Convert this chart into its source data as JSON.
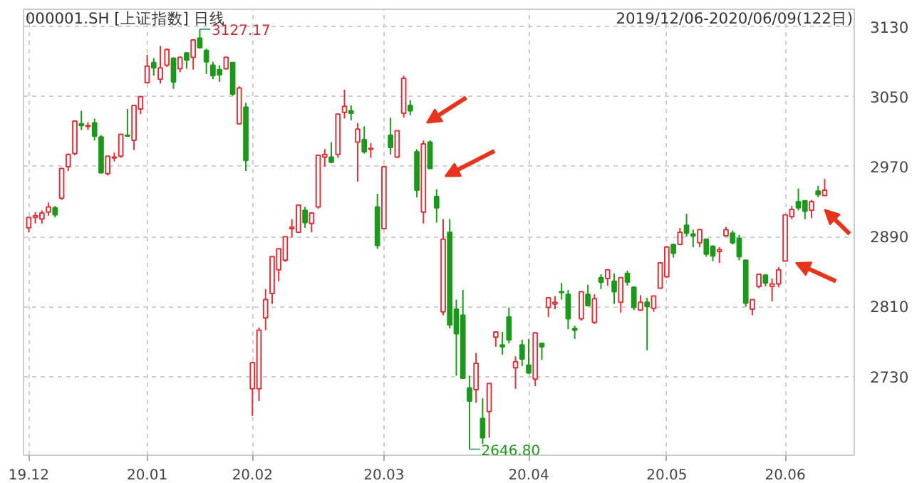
{
  "chart_data": {
    "type": "candlestick",
    "title": "000001.SH [上证指数] 日线",
    "subtitle": "2019/12/06-2020/06/09(122日)",
    "categories": [
      "19.12",
      null,
      null,
      null,
      null,
      null,
      null,
      null,
      null,
      null,
      null,
      null,
      null,
      null,
      null,
      null,
      null,
      null,
      "20.01",
      null,
      null,
      null,
      null,
      null,
      null,
      null,
      null,
      null,
      null,
      null,
      null,
      null,
      null,
      null,
      "20.02",
      null,
      null,
      null,
      null,
      null,
      null,
      null,
      null,
      null,
      null,
      null,
      null,
      null,
      null,
      null,
      null,
      null,
      null,
      null,
      "20.03",
      null,
      null,
      null,
      null,
      null,
      null,
      null,
      null,
      null,
      null,
      null,
      null,
      null,
      null,
      null,
      null,
      null,
      null,
      null,
      null,
      null,
      "20.04",
      null,
      null,
      null,
      null,
      null,
      null,
      null,
      null,
      null,
      null,
      null,
      null,
      null,
      null,
      null,
      null,
      null,
      null,
      null,
      null,
      "20.05",
      null,
      null,
      null,
      null,
      null,
      null,
      null,
      null,
      null,
      null,
      null,
      null,
      null,
      null,
      null,
      null,
      null,
      "20.06",
      null,
      null,
      null,
      null,
      null,
      null
    ],
    "ohlc": [
      [
        2900,
        2913,
        2895,
        2912
      ],
      [
        2912,
        2918,
        2905,
        2914
      ],
      [
        2910,
        2920,
        2905,
        2917
      ],
      [
        2918,
        2929,
        2914,
        2924
      ],
      [
        2923,
        2925,
        2912,
        2915
      ],
      [
        2934,
        2968,
        2932,
        2968
      ],
      [
        2970,
        2985,
        2965,
        2984
      ],
      [
        2985,
        3023,
        2983,
        3022
      ],
      [
        3019,
        3034,
        3012,
        3017
      ],
      [
        3016,
        3021,
        3012,
        3017
      ],
      [
        3020,
        3025,
        3000,
        3005
      ],
      [
        3004,
        3006,
        2962,
        2963
      ],
      [
        2962,
        2982,
        2960,
        2982
      ],
      [
        2980,
        2986,
        2976,
        2981
      ],
      [
        2982,
        3007,
        2980,
        3007
      ],
      [
        3006,
        3036,
        3005,
        3005
      ],
      [
        3000,
        3040,
        2989,
        3040
      ],
      [
        3036,
        3051,
        3030,
        3050
      ],
      [
        3066,
        3098,
        3066,
        3085
      ],
      [
        3089,
        3094,
        3074,
        3083
      ],
      [
        3070,
        3108,
        3065,
        3083
      ],
      [
        3086,
        3105,
        3084,
        3104
      ],
      [
        3094,
        3095,
        3059,
        3067
      ],
      [
        3082,
        3096,
        3078,
        3095
      ],
      [
        3100,
        3101,
        3082,
        3092
      ],
      [
        3095,
        3115,
        3081,
        3115
      ],
      [
        3117,
        3127.17,
        3105,
        3106
      ],
      [
        3103,
        3105,
        3076,
        3090
      ],
      [
        3086,
        3090,
        3070,
        3074
      ],
      [
        3081,
        3086,
        3067,
        3075
      ],
      [
        3082,
        3096,
        3081,
        3095
      ],
      [
        3089,
        3089,
        3051,
        3053
      ],
      [
        3019,
        3062,
        3018,
        3060
      ],
      [
        3038,
        3043,
        2965,
        2977
      ],
      [
        2716,
        2747,
        2685,
        2746
      ],
      [
        2716,
        2786,
        2702,
        2783
      ],
      [
        2797,
        2830,
        2783,
        2818
      ],
      [
        2825,
        2867,
        2813,
        2867
      ],
      [
        2852,
        2876,
        2839,
        2876
      ],
      [
        2863,
        2890,
        2861,
        2890
      ],
      [
        2899,
        2910,
        2889,
        2901
      ],
      [
        2895,
        2926,
        2895,
        2926
      ],
      [
        2920,
        2924,
        2900,
        2906
      ],
      [
        2905,
        2918,
        2895,
        2917
      ],
      [
        2924,
        2983,
        2922,
        2983
      ],
      [
        2981,
        2990,
        2970,
        2984
      ],
      [
        2981,
        2998,
        2974,
        2975
      ],
      [
        2984,
        3031,
        2980,
        3030
      ],
      [
        3032,
        3058,
        3025,
        3039
      ],
      [
        3034,
        3040,
        3023,
        3031
      ],
      [
        2998,
        3020,
        2953,
        3013
      ],
      [
        3001,
        3016,
        2985,
        2987
      ],
      [
        2990,
        2997,
        2980,
        2991
      ],
      [
        2924,
        2939,
        2876,
        2880
      ],
      [
        2899,
        2970,
        2899,
        2970
      ],
      [
        3006,
        3026,
        2984,
        2992
      ],
      [
        2981,
        3011,
        2980,
        3011
      ],
      [
        3031,
        3074,
        3026,
        3071
      ],
      [
        3040,
        3046,
        3029,
        3034
      ],
      [
        2987,
        2990,
        2935,
        2943
      ],
      [
        2918,
        3000,
        2905,
        2996
      ],
      [
        2998,
        3000,
        2968,
        2968
      ],
      [
        2936,
        2944,
        2906,
        2923
      ],
      [
        2804,
        2910,
        2800,
        2887
      ],
      [
        2895,
        2910,
        2785,
        2789
      ],
      [
        2807,
        2818,
        2731,
        2779
      ],
      [
        2800,
        2829,
        2728,
        2728
      ],
      [
        2717,
        2731,
        2646.8,
        2702
      ],
      [
        2715,
        2757,
        2700,
        2745
      ],
      [
        2682,
        2705,
        2653,
        2660
      ],
      [
        2690,
        2722,
        2660,
        2722
      ],
      [
        2775,
        2782,
        2764,
        2781
      ],
      [
        2766,
        2781,
        2755,
        2764
      ],
      [
        2798,
        2809,
        2768,
        2772
      ],
      [
        2740,
        2753,
        2716,
        2747
      ],
      [
        2766,
        2772,
        2742,
        2750
      ],
      [
        2743,
        2773,
        2733,
        2734
      ],
      [
        2727,
        2780,
        2719,
        2780
      ],
      [
        2768,
        2768,
        2749,
        2764
      ],
      [
        2809,
        2820,
        2798,
        2820
      ],
      [
        2813,
        2822,
        2807,
        2815
      ],
      [
        2827,
        2837,
        2818,
        2826
      ],
      [
        2824,
        2829,
        2784,
        2796
      ],
      [
        2785,
        2788,
        2773,
        2783
      ],
      [
        2796,
        2827,
        2794,
        2827
      ],
      [
        2824,
        2835,
        2811,
        2811
      ],
      [
        2792,
        2824,
        2790,
        2819
      ],
      [
        2843,
        2847,
        2830,
        2838
      ],
      [
        2842,
        2852,
        2834,
        2852
      ],
      [
        2839,
        2848,
        2813,
        2827
      ],
      [
        2815,
        2843,
        2803,
        2843
      ],
      [
        2848,
        2851,
        2834,
        2838
      ],
      [
        2832,
        2833,
        2806,
        2809
      ],
      [
        2806,
        2823,
        2805,
        2815
      ],
      [
        2815,
        2820,
        2760,
        2810
      ],
      [
        2808,
        2822,
        2804,
        2822
      ],
      [
        2831,
        2861,
        2831,
        2860
      ],
      [
        2844,
        2879,
        2843,
        2878
      ],
      [
        2881,
        2882,
        2866,
        2871
      ],
      [
        2881,
        2900,
        2881,
        2895
      ],
      [
        2903,
        2916,
        2890,
        2894
      ],
      [
        2893,
        2898,
        2878,
        2891
      ],
      [
        2883,
        2899,
        2878,
        2898
      ],
      [
        2887,
        2887,
        2867,
        2870
      ],
      [
        2879,
        2880,
        2862,
        2868
      ],
      [
        2873,
        2878,
        2860,
        2875
      ],
      [
        2891,
        2901,
        2891,
        2898
      ],
      [
        2894,
        2897,
        2881,
        2883
      ],
      [
        2888,
        2892,
        2863,
        2867
      ],
      [
        2863,
        2863,
        2810,
        2814
      ],
      [
        2807,
        2818,
        2800,
        2818
      ],
      [
        2833,
        2847,
        2831,
        2847
      ],
      [
        2846,
        2847,
        2833,
        2837
      ],
      [
        2833,
        2842,
        2816,
        2836
      ],
      [
        2836,
        2855,
        2832,
        2852
      ],
      [
        2862,
        2915,
        2862,
        2915
      ],
      [
        2913,
        2925,
        2910,
        2921
      ],
      [
        2930,
        2945,
        2920,
        2923
      ],
      [
        2931,
        2931,
        2910,
        2919
      ],
      [
        2920,
        2932,
        2911,
        2930
      ],
      [
        2942,
        2948,
        2935,
        2938
      ],
      [
        2937,
        2956,
        2937,
        2943
      ]
    ],
    "colors": [
      "#e0303a",
      "#e0303a",
      "#e0303a",
      "#e0303a",
      "#1b991b",
      "#e0303a",
      "#e0303a",
      "#e0303a",
      "#1b991b",
      "#e0303a",
      "#1b991b",
      "#1b991b",
      "#e0303a",
      "#e0303a",
      "#e0303a",
      "#1b991b",
      "#e0303a",
      "#e0303a",
      "#e0303a",
      "#1b991b",
      "#e0303a",
      "#e0303a",
      "#1b991b",
      "#e0303a",
      "#1b991b",
      "#e0303a",
      "#1b991b",
      "#1b991b",
      "#1b991b",
      "#1b991b",
      "#e0303a",
      "#1b991b",
      "#e0303a",
      "#1b991b",
      "#e0303a",
      "#e0303a",
      "#e0303a",
      "#e0303a",
      "#e0303a",
      "#e0303a",
      "#e0303a",
      "#e0303a",
      "#1b991b",
      "#e0303a",
      "#e0303a",
      "#e0303a",
      "#1b991b",
      "#e0303a",
      "#e0303a",
      "#1b991b",
      "#e0303a",
      "#1b991b",
      "#e0303a",
      "#1b991b",
      "#e0303a",
      "#1b991b",
      "#e0303a",
      "#e0303a",
      "#1b991b",
      "#1b991b",
      "#e0303a",
      "#1b991b",
      "#1b991b",
      "#e0303a",
      "#1b991b",
      "#1b991b",
      "#1b991b",
      "#1b991b",
      "#e0303a",
      "#1b991b",
      "#e0303a",
      "#e0303a",
      "#1b991b",
      "#1b991b",
      "#e0303a",
      "#1b991b",
      "#1b991b",
      "#e0303a",
      "#1b991b",
      "#e0303a",
      "#e0303a",
      "#1b991b",
      "#1b991b",
      "#1b991b",
      "#e0303a",
      "#1b991b",
      "#e0303a",
      "#1b991b",
      "#e0303a",
      "#1b991b",
      "#e0303a",
      "#1b991b",
      "#1b991b",
      "#e0303a",
      "#1b991b",
      "#e0303a",
      "#e0303a",
      "#e0303a",
      "#1b991b",
      "#e0303a",
      "#1b991b",
      "#1b991b",
      "#e0303a",
      "#1b991b",
      "#1b991b",
      "#e0303a",
      "#e0303a",
      "#1b991b",
      "#1b991b",
      "#1b991b",
      "#e0303a",
      "#e0303a",
      "#1b991b",
      "#e0303a",
      "#e0303a",
      "#e0303a",
      "#e0303a",
      "#1b991b",
      "#1b991b",
      "#e0303a",
      "#1b991b",
      "#e0303a"
    ],
    "annotations": [
      "3127.17",
      "2646.80"
    ],
    "ylim": [
      2640,
      3150
    ],
    "yticks": [
      2730,
      2810,
      2890,
      2970,
      3050,
      3130
    ],
    "grid": true
  }
}
